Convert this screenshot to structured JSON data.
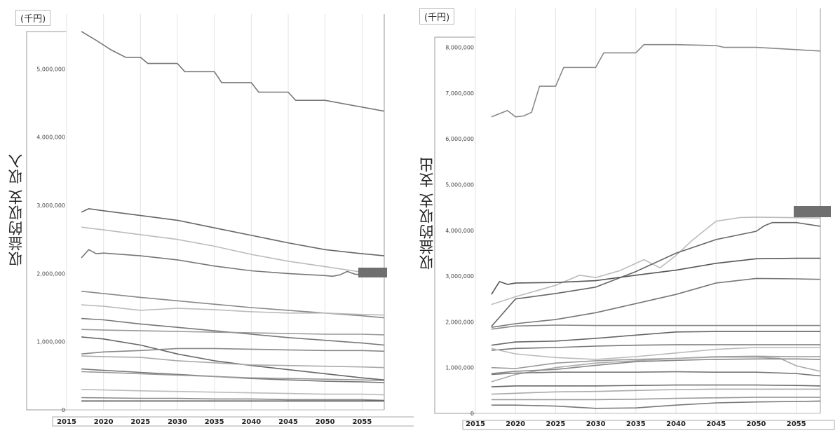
{
  "chart_data": [
    {
      "type": "line",
      "unit": "(千円)",
      "ylabel": "収益的収支 収入",
      "ylim": [
        0,
        5600000
      ],
      "yticks": [
        0,
        1000000,
        2000000,
        3000000,
        4000000,
        5000000
      ],
      "ytick_labels": [
        "0",
        "1,000,000",
        "2,000,000",
        "3,000,000",
        "4,000,000",
        "5,000,000"
      ],
      "xlim": [
        2015,
        2058
      ],
      "xticks": [
        2015,
        2020,
        2025,
        2030,
        2035,
        2040,
        2045,
        2050,
        2055
      ],
      "xtick_labels": [
        "2015",
        "2020",
        "2025",
        "2030",
        "2035",
        "2040",
        "2045",
        "2050",
        "2055"
      ],
      "grid": true,
      "series": [
        {
          "color": "#777777",
          "x": [
            2017,
            2019,
            2021,
            2023,
            2025,
            2026,
            2030,
            2031,
            2035,
            2036,
            2040,
            2041,
            2045,
            2046,
            2050,
            2058
          ],
          "values": [
            5550000,
            5420000,
            5280000,
            5170000,
            5170000,
            5080000,
            5080000,
            4960000,
            4960000,
            4800000,
            4800000,
            4660000,
            4660000,
            4540000,
            4540000,
            4380000
          ]
        },
        {
          "color": "#666666",
          "x": [
            2017,
            2018,
            2020,
            2025,
            2030,
            2035,
            2040,
            2045,
            2050,
            2055,
            2058
          ],
          "values": [
            2900000,
            2950000,
            2920000,
            2850000,
            2780000,
            2670000,
            2560000,
            2450000,
            2350000,
            2290000,
            2260000
          ]
        },
        {
          "color": "#bbbbbb",
          "x": [
            2017,
            2020,
            2025,
            2030,
            2035,
            2040,
            2045,
            2050,
            2055,
            2058
          ],
          "values": [
            2680000,
            2640000,
            2570000,
            2500000,
            2400000,
            2280000,
            2180000,
            2100000,
            2020000,
            1980000
          ]
        },
        {
          "color": "#777777",
          "x": [
            2017,
            2018,
            2019,
            2020,
            2025,
            2030,
            2035,
            2040,
            2045,
            2050,
            2051,
            2052,
            2053,
            2054,
            2058
          ],
          "values": [
            2230000,
            2350000,
            2290000,
            2300000,
            2260000,
            2200000,
            2110000,
            2040000,
            2000000,
            1970000,
            1960000,
            1980000,
            2030000,
            1990000,
            1960000
          ]
        },
        {
          "color": "#888888",
          "x": [
            2017,
            2025,
            2030,
            2035,
            2040,
            2045,
            2050,
            2055,
            2058
          ],
          "values": [
            1740000,
            1650000,
            1600000,
            1550000,
            1500000,
            1460000,
            1420000,
            1380000,
            1350000
          ]
        },
        {
          "color": "#bbbbbb",
          "x": [
            2017,
            2020,
            2025,
            2030,
            2035,
            2040,
            2045,
            2050,
            2055,
            2058
          ],
          "values": [
            1540000,
            1520000,
            1460000,
            1490000,
            1470000,
            1440000,
            1420000,
            1420000,
            1400000,
            1390000
          ]
        },
        {
          "color": "#777777",
          "x": [
            2017,
            2020,
            2025,
            2030,
            2035,
            2040,
            2045,
            2050,
            2055,
            2058
          ],
          "values": [
            1340000,
            1320000,
            1260000,
            1210000,
            1160000,
            1110000,
            1060000,
            1020000,
            980000,
            950000
          ]
        },
        {
          "color": "#999999",
          "x": [
            2017,
            2020,
            2025,
            2030,
            2035,
            2040,
            2045,
            2050,
            2055,
            2058
          ],
          "values": [
            1180000,
            1170000,
            1160000,
            1150000,
            1140000,
            1130000,
            1120000,
            1110000,
            1110000,
            1100000
          ]
        },
        {
          "color": "#666666",
          "x": [
            2017,
            2020,
            2025,
            2030,
            2035,
            2040,
            2045,
            2050,
            2055,
            2058
          ],
          "values": [
            1070000,
            1040000,
            950000,
            820000,
            720000,
            650000,
            590000,
            530000,
            470000,
            440000
          ]
        },
        {
          "color": "#888888",
          "x": [
            2017,
            2020,
            2025,
            2030,
            2035,
            2040,
            2045,
            2050,
            2055,
            2058
          ],
          "values": [
            820000,
            850000,
            870000,
            900000,
            900000,
            890000,
            880000,
            870000,
            870000,
            860000
          ]
        },
        {
          "color": "#aaaaaa",
          "x": [
            2017,
            2020,
            2025,
            2030,
            2035,
            2040,
            2045,
            2050,
            2055,
            2058
          ],
          "values": [
            790000,
            780000,
            770000,
            720000,
            690000,
            660000,
            650000,
            640000,
            630000,
            620000
          ]
        },
        {
          "color": "#777777",
          "x": [
            2017,
            2020,
            2025,
            2030,
            2035,
            2040,
            2045,
            2050,
            2055,
            2058
          ],
          "values": [
            600000,
            580000,
            550000,
            520000,
            490000,
            460000,
            440000,
            420000,
            410000,
            400000
          ]
        },
        {
          "color": "#999999",
          "x": [
            2017,
            2020,
            2025,
            2030,
            2035,
            2040,
            2045,
            2050,
            2055,
            2058
          ],
          "values": [
            560000,
            550000,
            530000,
            510000,
            490000,
            470000,
            460000,
            450000,
            440000,
            430000
          ]
        },
        {
          "color": "#bbbbbb",
          "x": [
            2017,
            2025,
            2030,
            2035,
            2040,
            2045,
            2050,
            2055,
            2058
          ],
          "values": [
            300000,
            280000,
            270000,
            260000,
            250000,
            240000,
            230000,
            230000,
            220000
          ]
        },
        {
          "color": "#888888",
          "x": [
            2017,
            2025,
            2030,
            2035,
            2040,
            2045,
            2050,
            2055,
            2058
          ],
          "values": [
            180000,
            170000,
            170000,
            160000,
            160000,
            150000,
            150000,
            150000,
            140000
          ]
        },
        {
          "color": "#555555",
          "x": [
            2017,
            2025,
            2030,
            2035,
            2040,
            2045,
            2050,
            2055,
            2058
          ],
          "values": [
            130000,
            130000,
            130000,
            130000,
            130000,
            130000,
            130000,
            130000,
            130000
          ]
        }
      ]
    },
    {
      "type": "line",
      "unit": "(千円)",
      "ylabel": "収益的収支 支出",
      "ylim": [
        0,
        8300000
      ],
      "yticks": [
        0,
        1000000,
        2000000,
        3000000,
        4000000,
        5000000,
        6000000,
        7000000,
        8000000
      ],
      "ytick_labels": [
        "0",
        "1,000,000",
        "2,000,000",
        "3,000,000",
        "4,000,000",
        "5,000,000",
        "6,000,000",
        "7,000,000",
        "8,000,000"
      ],
      "xlim": [
        2015,
        2058
      ],
      "xticks": [
        2015,
        2020,
        2025,
        2030,
        2035,
        2040,
        2045,
        2050,
        2055
      ],
      "xtick_labels": [
        "2015",
        "2020",
        "2025",
        "2030",
        "2035",
        "2040",
        "2045",
        "2050",
        "2055"
      ],
      "grid": true,
      "series": [
        {
          "color": "#888888",
          "x": [
            2017,
            2019,
            2020,
            2021,
            2022,
            2023,
            2025,
            2026,
            2030,
            2031,
            2035,
            2036,
            2040,
            2045,
            2046,
            2050,
            2058
          ],
          "values": [
            6480000,
            6620000,
            6480000,
            6500000,
            6580000,
            7150000,
            7150000,
            7560000,
            7560000,
            7880000,
            7880000,
            8060000,
            8060000,
            8040000,
            8000000,
            8000000,
            7920000
          ]
        },
        {
          "color": "#bbbbbb",
          "x": [
            2017,
            2020,
            2025,
            2028,
            2030,
            2033,
            2036,
            2038,
            2040,
            2042,
            2045,
            2048,
            2050,
            2058
          ],
          "values": [
            2380000,
            2550000,
            2800000,
            3020000,
            2970000,
            3120000,
            3360000,
            3180000,
            3450000,
            3780000,
            4200000,
            4280000,
            4290000,
            4270000
          ]
        },
        {
          "color": "#666666",
          "x": [
            2017,
            2020,
            2025,
            2030,
            2035,
            2040,
            2045,
            2050,
            2051,
            2052,
            2055,
            2058
          ],
          "values": [
            1900000,
            2500000,
            2620000,
            2760000,
            3100000,
            3500000,
            3800000,
            3980000,
            4100000,
            4170000,
            4170000,
            4090000
          ]
        },
        {
          "color": "#555555",
          "x": [
            2017,
            2018,
            2019,
            2020,
            2025,
            2030,
            2035,
            2040,
            2045,
            2050,
            2055,
            2058
          ],
          "values": [
            2600000,
            2880000,
            2820000,
            2850000,
            2860000,
            2900000,
            3020000,
            3130000,
            3280000,
            3380000,
            3390000,
            3390000
          ]
        },
        {
          "color": "#777777",
          "x": [
            2017,
            2020,
            2025,
            2030,
            2035,
            2040,
            2045,
            2050,
            2055,
            2058
          ],
          "values": [
            1880000,
            1960000,
            2050000,
            2200000,
            2400000,
            2600000,
            2850000,
            2950000,
            2940000,
            2930000
          ]
        },
        {
          "color": "#888888",
          "x": [
            2017,
            2020,
            2025,
            2030,
            2035,
            2040,
            2045,
            2050,
            2055,
            2058
          ],
          "values": [
            1840000,
            1910000,
            1930000,
            1920000,
            1920000,
            1920000,
            1920000,
            1920000,
            1920000,
            1920000
          ]
        },
        {
          "color": "#666666",
          "x": [
            2017,
            2020,
            2025,
            2030,
            2035,
            2040,
            2045,
            2050,
            2055,
            2058
          ],
          "values": [
            1490000,
            1560000,
            1580000,
            1640000,
            1710000,
            1780000,
            1790000,
            1790000,
            1790000,
            1790000
          ]
        },
        {
          "color": "#777777",
          "x": [
            2017,
            2020,
            2025,
            2030,
            2035,
            2040,
            2045,
            2050,
            2055,
            2058
          ],
          "values": [
            1380000,
            1420000,
            1440000,
            1470000,
            1490000,
            1500000,
            1500000,
            1500000,
            1500000,
            1500000
          ]
        },
        {
          "color": "#bbbbbb",
          "x": [
            2017,
            2020,
            2025,
            2030,
            2035,
            2040,
            2045,
            2050,
            2055,
            2058
          ],
          "values": [
            1420000,
            1300000,
            1220000,
            1180000,
            1240000,
            1320000,
            1400000,
            1440000,
            1440000,
            1440000
          ]
        },
        {
          "color": "#999999",
          "x": [
            2017,
            2020,
            2025,
            2030,
            2035,
            2040,
            2045,
            2050,
            2055,
            2058
          ],
          "values": [
            1000000,
            980000,
            1100000,
            1150000,
            1180000,
            1200000,
            1240000,
            1250000,
            1240000,
            1240000
          ]
        },
        {
          "color": "#aaaaaa",
          "x": [
            2017,
            2020,
            2025,
            2030,
            2035,
            2040,
            2045,
            2050,
            2053,
            2055,
            2058
          ],
          "values": [
            690000,
            850000,
            1000000,
            1100000,
            1150000,
            1200000,
            1230000,
            1230000,
            1200000,
            1040000,
            920000
          ]
        },
        {
          "color": "#777777",
          "x": [
            2017,
            2020,
            2025,
            2030,
            2035,
            2040,
            2045,
            2050,
            2055,
            2058
          ],
          "values": [
            850000,
            880000,
            900000,
            900000,
            900000,
            910000,
            900000,
            900000,
            870000,
            820000
          ]
        },
        {
          "color": "#888888",
          "x": [
            2017,
            2020,
            2025,
            2030,
            2035,
            2040,
            2045,
            2050,
            2055,
            2058
          ],
          "values": [
            870000,
            920000,
            960000,
            1050000,
            1130000,
            1160000,
            1180000,
            1190000,
            1190000,
            1180000
          ]
        },
        {
          "color": "#666666",
          "x": [
            2017,
            2020,
            2025,
            2030,
            2035,
            2040,
            2045,
            2050,
            2055,
            2058
          ],
          "values": [
            580000,
            600000,
            600000,
            600000,
            610000,
            620000,
            620000,
            620000,
            610000,
            600000
          ]
        },
        {
          "color": "#aaaaaa",
          "x": [
            2017,
            2020,
            2025,
            2030,
            2035,
            2040,
            2045,
            2050,
            2055,
            2058
          ],
          "values": [
            420000,
            440000,
            470000,
            480000,
            500000,
            520000,
            530000,
            530000,
            530000,
            530000
          ]
        },
        {
          "color": "#999999",
          "x": [
            2017,
            2020,
            2025,
            2030,
            2035,
            2040,
            2045,
            2050,
            2055,
            2058
          ],
          "values": [
            300000,
            300000,
            300000,
            300000,
            310000,
            330000,
            340000,
            350000,
            350000,
            350000
          ]
        },
        {
          "color": "#777777",
          "x": [
            2017,
            2020,
            2025,
            2030,
            2035,
            2040,
            2045,
            2050,
            2055,
            2058
          ],
          "values": [
            180000,
            180000,
            160000,
            110000,
            120000,
            180000,
            230000,
            250000,
            260000,
            270000
          ]
        }
      ]
    }
  ]
}
